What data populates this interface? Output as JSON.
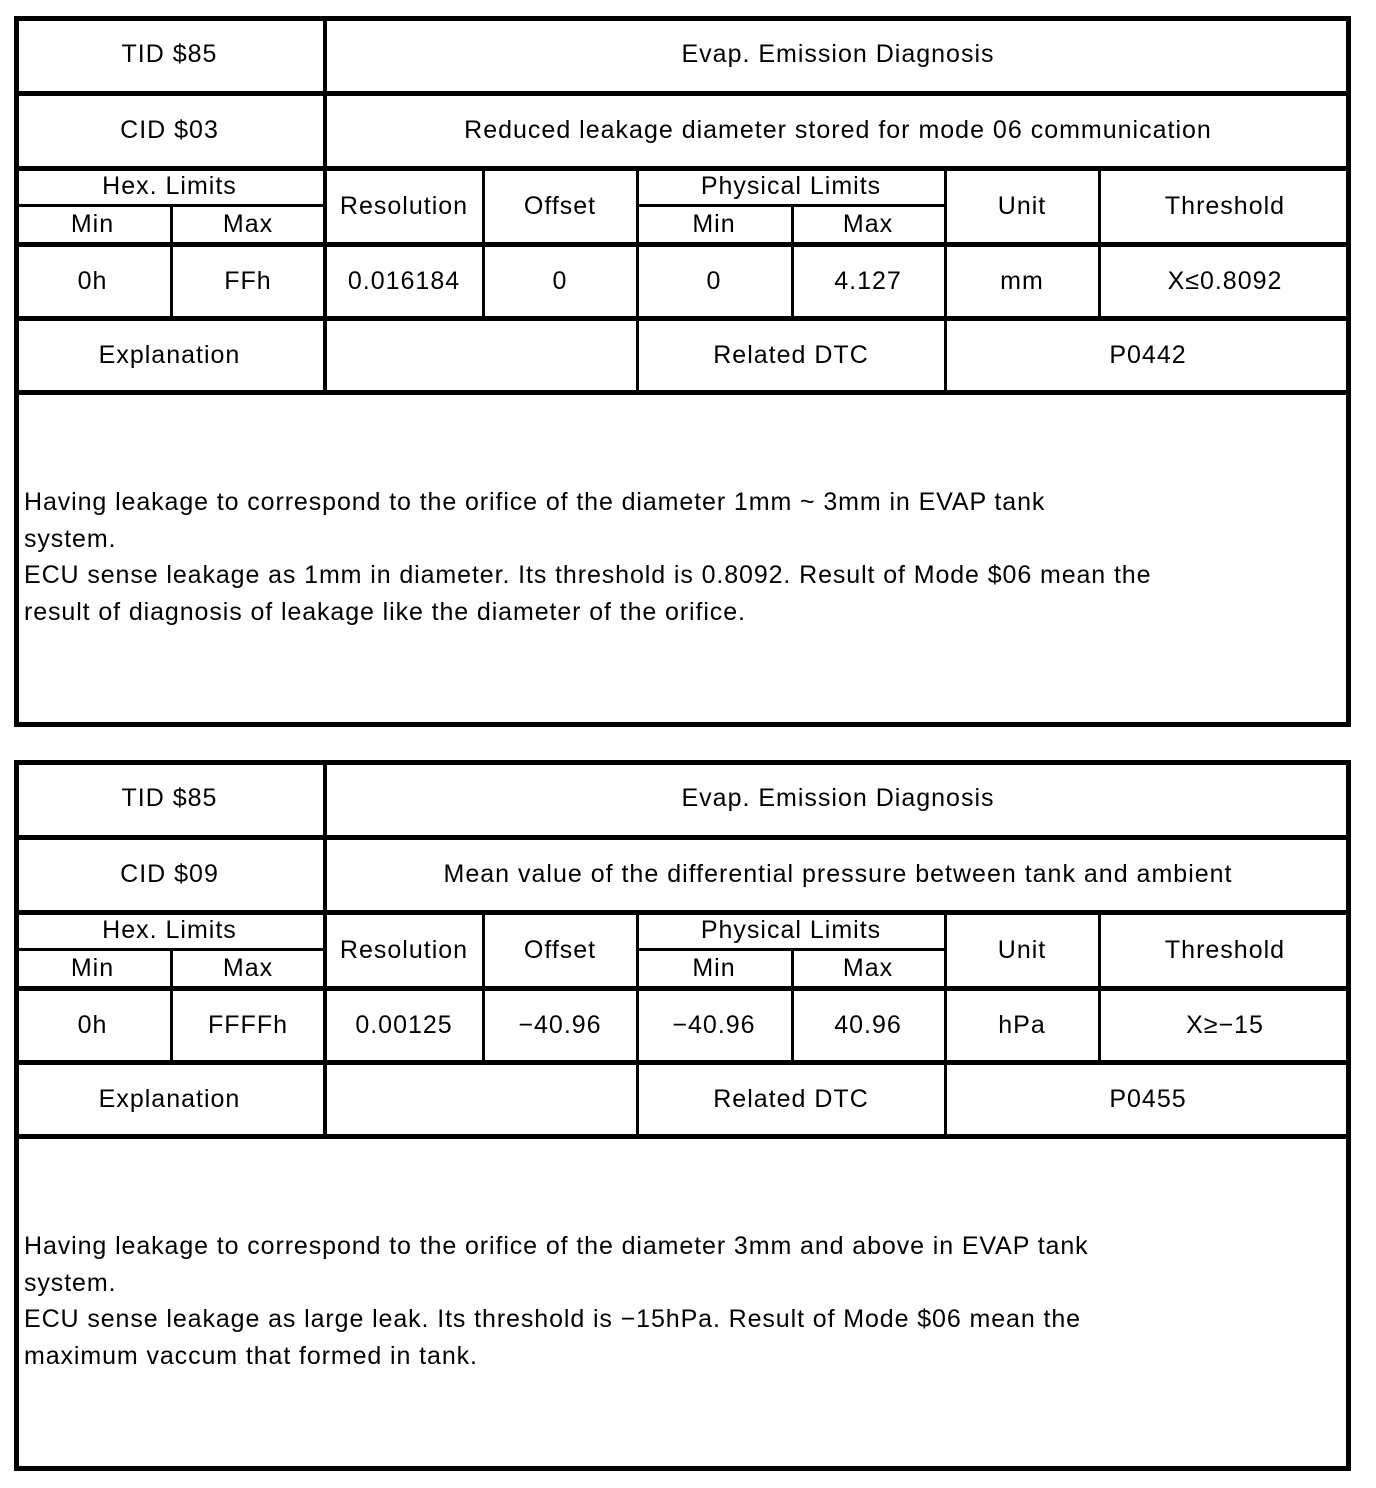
{
  "tables": [
    {
      "tid": "TID $85",
      "tid_desc": "Evap. Emission Diagnosis",
      "cid": "CID $03",
      "cid_desc": "Reduced leakage diameter stored for mode 06 communication",
      "headers": {
        "hex_limits": "Hex. Limits",
        "hex_min": "Min",
        "hex_max": "Max",
        "resolution": "Resolution",
        "offset": "Offset",
        "physical_limits": "Physical Limits",
        "phys_min": "Min",
        "phys_max": "Max",
        "unit": "Unit",
        "threshold": "Threshold"
      },
      "values": {
        "hex_min": "0h",
        "hex_max": "FFh",
        "resolution": "0.016184",
        "offset": "0",
        "phys_min": "0",
        "phys_max": "4.127",
        "unit": "mm",
        "threshold": "X≤0.8092"
      },
      "explanation_label": "Explanation",
      "explanation_value": "",
      "related_dtc_label": "Related DTC",
      "related_dtc": "P0442",
      "explanation_lines": [
        "Having leakage to correspond to the orifice of the diameter 1mm ~ 3mm in EVAP tank",
        "system.",
        "ECU sense leakage as 1mm in diameter. Its threshold is 0.8092. Result of Mode $06 mean the",
        "result of diagnosis of leakage like the diameter of the orifice."
      ]
    },
    {
      "tid": "TID $85",
      "tid_desc": "Evap. Emission Diagnosis",
      "cid": "CID $09",
      "cid_desc": "Mean value of the differential pressure between tank and ambient",
      "headers": {
        "hex_limits": "Hex. Limits",
        "hex_min": "Min",
        "hex_max": "Max",
        "resolution": "Resolution",
        "offset": "Offset",
        "physical_limits": "Physical Limits",
        "phys_min": "Min",
        "phys_max": "Max",
        "unit": "Unit",
        "threshold": "Threshold"
      },
      "values": {
        "hex_min": "0h",
        "hex_max": "FFFFh",
        "resolution": "0.00125",
        "offset": "−40.96",
        "phys_min": "−40.96",
        "phys_max": "40.96",
        "unit": "hPa",
        "threshold": "X≥−15"
      },
      "explanation_label": "Explanation",
      "explanation_value": "",
      "related_dtc_label": "Related DTC",
      "related_dtc": "P0455",
      "explanation_lines": [
        "Having leakage to correspond to the orifice of the diameter 3mm and above in EVAP tank",
        "system.",
        "ECU sense leakage as large leak. Its threshold is −15hPa. Result of Mode $06 mean the",
        "maximum vaccum that formed in tank."
      ]
    }
  ]
}
